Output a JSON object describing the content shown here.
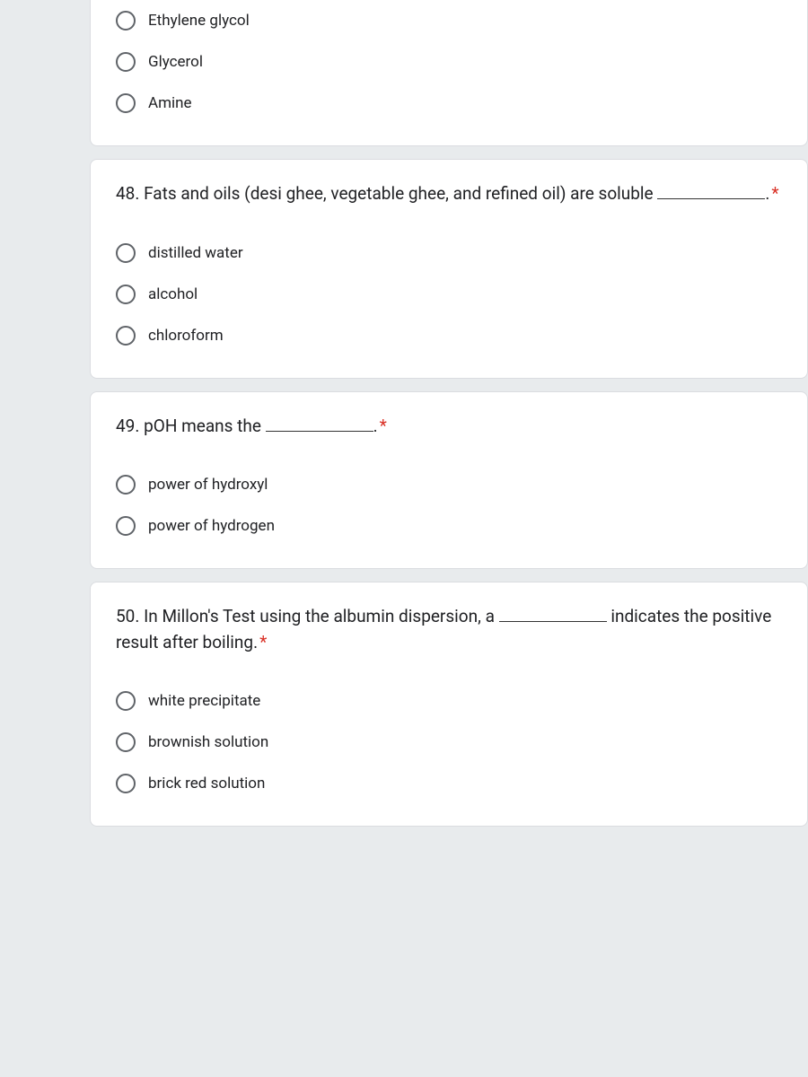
{
  "colors": {
    "card_bg": "#ffffff",
    "page_bg": "#e8ebed",
    "text": "#202124",
    "radio_border": "#5f6368",
    "required": "#d93025",
    "card_border": "#dadce0"
  },
  "typography": {
    "question_fontsize": 19,
    "option_fontsize": 17,
    "font_family": "Roboto, Arial, sans-serif"
  },
  "questions": [
    {
      "id": "q47_partial",
      "partial": true,
      "options": [
        {
          "label": "Ethylene glycol"
        },
        {
          "label": "Glycerol"
        },
        {
          "label": "Amine"
        }
      ]
    },
    {
      "id": "q48",
      "text_before": "48. Fats and oils (desi ghee, vegetable ghee, and refined oil) are soluble ",
      "text_after": ".",
      "required": true,
      "has_blank": true,
      "options": [
        {
          "label": "distilled water"
        },
        {
          "label": "alcohol"
        },
        {
          "label": "chloroform"
        }
      ]
    },
    {
      "id": "q49",
      "text_before": "49. pOH means the ",
      "text_after": ".",
      "required": true,
      "has_blank": true,
      "options": [
        {
          "label": "power of hydroxyl"
        },
        {
          "label": "power of hydrogen"
        }
      ]
    },
    {
      "id": "q50",
      "text_before": "50. In Millon's Test using the albumin dispersion, a ",
      "text_after": " indicates the positive result after boiling.",
      "required": true,
      "has_blank": true,
      "options": [
        {
          "label": "white precipitate"
        },
        {
          "label": "brownish solution"
        },
        {
          "label": "brick red solution"
        }
      ]
    }
  ]
}
